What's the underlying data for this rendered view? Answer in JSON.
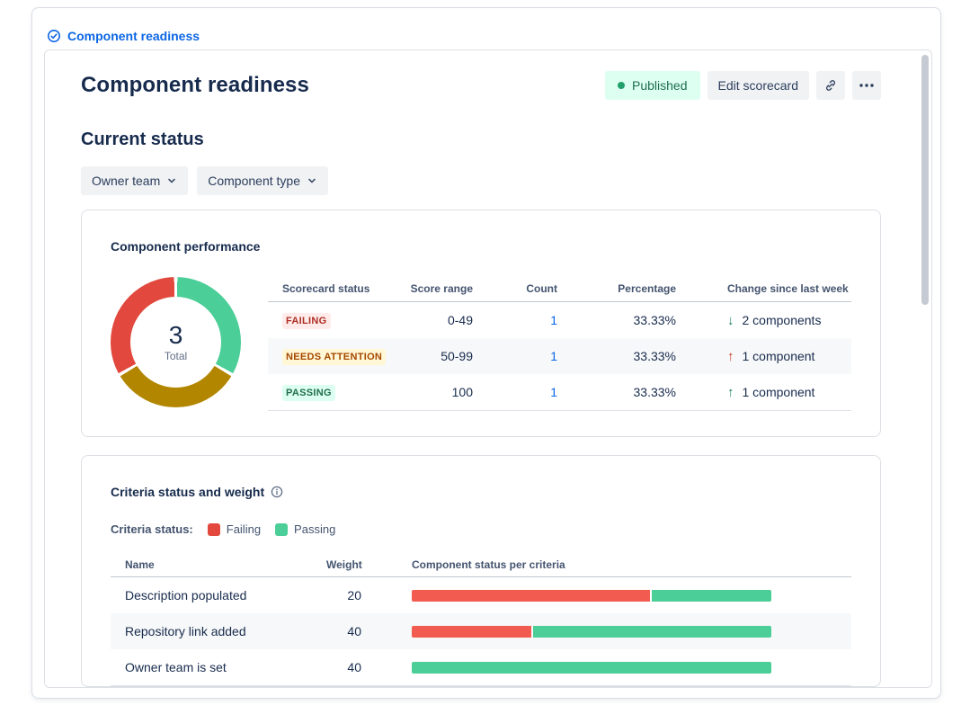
{
  "breadcrumb": {
    "label": "Component readiness"
  },
  "header": {
    "title": "Component readiness",
    "published_badge": {
      "label": "Published",
      "bg": "#dcfff1",
      "text_color": "#216e4e",
      "dot_color": "#22a06b"
    },
    "edit_button": "Edit scorecard"
  },
  "current_status_heading": "Current status",
  "filters": {
    "owner_team": "Owner team",
    "component_type": "Component type"
  },
  "performance": {
    "title": "Component performance",
    "chart": {
      "type": "donut",
      "total": 3,
      "total_label": "Total",
      "segments": [
        {
          "label": "Passing",
          "value": 1,
          "color": "#4bce97"
        },
        {
          "label": "Needs attention",
          "value": 1,
          "color": "#b38600"
        },
        {
          "label": "Failing",
          "value": 1,
          "color": "#e2483d"
        }
      ]
    },
    "table": {
      "headers": {
        "status": "Scorecard status",
        "range": "Score range",
        "count": "Count",
        "pct": "Percentage",
        "change": "Change since last week"
      },
      "rows": [
        {
          "status": "FAILING",
          "status_bg": "#ffecea",
          "status_color": "#ae2e24",
          "range": "0-49",
          "count": "1",
          "pct": "33.33%",
          "arrow": "↓",
          "arrow_color": "#1f845a",
          "change": "2 components"
        },
        {
          "status": "NEEDS ATTENTION",
          "status_bg": "#fff7d6",
          "status_color": "#a54800",
          "range": "50-99",
          "count": "1",
          "pct": "33.33%",
          "arrow": "↑",
          "arrow_color": "#c9372c",
          "change": "1 component"
        },
        {
          "status": "PASSING",
          "status_bg": "#dcfff1",
          "status_color": "#216e4e",
          "range": "100",
          "count": "1",
          "pct": "33.33%",
          "arrow": "↑",
          "arrow_color": "#1f845a",
          "change": "1 component"
        }
      ]
    }
  },
  "criteria": {
    "title": "Criteria status and weight",
    "legend": {
      "label": "Criteria status:",
      "items": [
        {
          "label": "Failing",
          "color": "#e2483d"
        },
        {
          "label": "Passing",
          "color": "#4bce97"
        }
      ]
    },
    "table": {
      "headers": {
        "name": "Name",
        "weight": "Weight",
        "status": "Component status per criteria"
      },
      "rows": [
        {
          "name": "Description populated",
          "weight": "20",
          "segments": [
            {
              "color": "#f15b50",
              "pct": 66.7
            },
            {
              "color": "#4bce97",
              "pct": 33.3
            }
          ]
        },
        {
          "name": "Repository link added",
          "weight": "40",
          "segments": [
            {
              "color": "#f15b50",
              "pct": 33.3
            },
            {
              "color": "#4bce97",
              "pct": 66.7
            }
          ]
        },
        {
          "name": "Owner team is set",
          "weight": "40",
          "segments": [
            {
              "color": "#4bce97",
              "pct": 100
            }
          ]
        }
      ]
    }
  }
}
